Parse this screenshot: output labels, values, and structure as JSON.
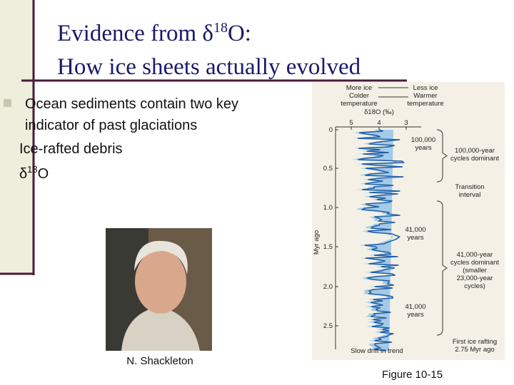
{
  "title": {
    "line1_start": "Evidence from δ",
    "line1_sup": "18",
    "line1_end": "O:",
    "line2": "How ice sheets actually evolved"
  },
  "bullets": [
    {
      "lines": [
        "Ocean sediments contain two key",
        "indicator of past glaciations"
      ]
    }
  ],
  "sub_items": [
    {
      "text": "Ice-rafted debris"
    },
    {
      "text_start": "δ",
      "sup": "18",
      "text_end": "O"
    }
  ],
  "photo": {
    "caption": "N. Shackleton"
  },
  "figure": {
    "caption": "Figure 10-15",
    "top_left": [
      "More ice",
      "Colder",
      "temperature"
    ],
    "top_right": [
      "Less ice",
      "Warmer",
      "temperature"
    ],
    "axis_title": "δ18O (‰)",
    "x_ticks": [
      "5",
      "4",
      "3"
    ],
    "y_ticks": [
      "0",
      "0.5",
      "1.0",
      "1.5",
      "2.0",
      "2.5"
    ],
    "y_label": "Myr ago",
    "annotations": {
      "a100k": [
        "100,000",
        "years"
      ],
      "cycles100k": [
        "100,000-year",
        "cycles dominant"
      ],
      "transition": [
        "Transition",
        "interval"
      ],
      "a41k_1": [
        "41,000",
        "years"
      ],
      "cycles41k": [
        "41,000-year",
        "cycles dominant",
        "(smaller",
        "23,000-year",
        "cycles)"
      ],
      "a41k_2": [
        "41,000",
        "years"
      ],
      "first_ice": [
        "First ice rafting",
        "2.75 Myr ago"
      ],
      "slow_drift": "Slow drift in trend"
    }
  }
}
